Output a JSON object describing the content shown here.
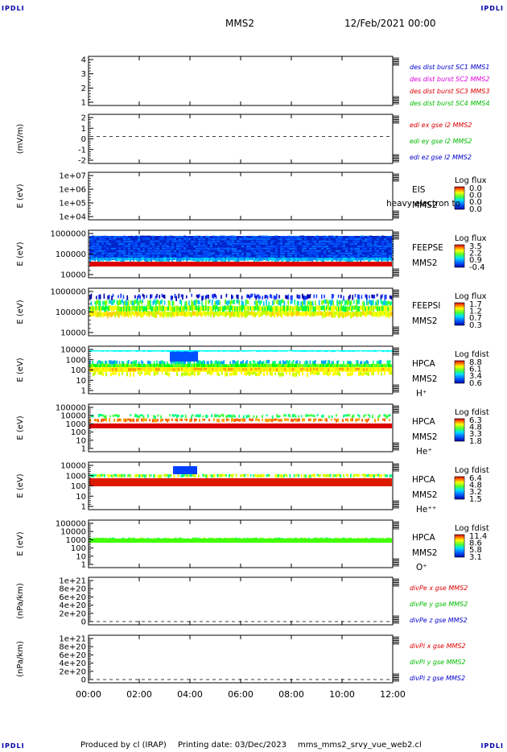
{
  "corner_label": "IPDLI",
  "header": {
    "spacecraft": "MMS2",
    "datetime": "12/Feb/2021 00:00"
  },
  "footer": {
    "produced_by": "Produced by cl (IRAP)",
    "printing_date": "Printing date: 03/Dec/2023",
    "filename": "mms_mms2_srvy_vue_web2.cl"
  },
  "time_axis": [
    "00:00",
    "02:00",
    "04:00",
    "06:00",
    "08:00",
    "10:00",
    "12:00"
  ],
  "colors": {
    "blue": "#0000cc",
    "magenta": "#dd00dd",
    "red": "#dd0000",
    "green": "#00bb00"
  },
  "panels": [
    {
      "id": "burst",
      "ylabel": "",
      "ticks": [
        "4",
        "3",
        "2",
        "1"
      ],
      "legend": [
        {
          "text": "des dist burst SC1 MMS1",
          "color": "#0000cc"
        },
        {
          "text": "des dist burst SC2 MMS2",
          "color": "#dd00dd"
        },
        {
          "text": "des dist burst SC3 MMS3",
          "color": "#dd0000"
        },
        {
          "text": "des dist burst SC4 MMS4",
          "color": "#00bb00"
        }
      ]
    },
    {
      "id": "edi",
      "ylabel": "(mV/m)",
      "ticks": [
        "2",
        "1",
        "0",
        "-1",
        "-2"
      ],
      "legend": [
        {
          "text": "edi ex gse l2 MMS2",
          "color": "#dd0000"
        },
        {
          "text": "edi ey gse l2 MMS2",
          "color": "#00bb00"
        },
        {
          "text": "edi ez gse l2 MMS2",
          "color": "#0000cc"
        }
      ]
    },
    {
      "id": "eis",
      "ylabel": "E (eV)",
      "ticks": [
        "1e+07",
        "1e+06",
        "1e+05",
        "1e+04"
      ],
      "labels": [
        "EIS",
        "MMS2"
      ],
      "overlay": "heavy electron to",
      "cb_title": "Log flux",
      "cb_ticks": [
        "0.0",
        "0.0",
        "0.0",
        "0.0"
      ]
    },
    {
      "id": "feepse",
      "ylabel": "E (eV)",
      "ticks": [
        "1000000",
        "100000",
        "10000"
      ],
      "labels": [
        "FEEPSE",
        "MMS2"
      ],
      "cb_title": "Log flux",
      "cb_ticks": [
        "3.5",
        "2.2",
        "0.9",
        "-0.4"
      ]
    },
    {
      "id": "feepsi",
      "ylabel": "E (eV)",
      "ticks": [
        "1000000",
        "100000",
        "10000"
      ],
      "labels": [
        "FEEPSI",
        "MMS2"
      ],
      "cb_title": "Log flux",
      "cb_ticks": [
        "1.7",
        "1.2",
        "0.7",
        "0.3"
      ]
    },
    {
      "id": "hpca_h",
      "ylabel": "E (eV)",
      "ticks": [
        "10000",
        "1000",
        "100",
        "10",
        "1"
      ],
      "labels": [
        "HPCA",
        "MMS2",
        "H⁺"
      ],
      "cb_title": "Log fdist",
      "cb_ticks": [
        "8.8",
        "6.1",
        "3.4",
        "0.6"
      ]
    },
    {
      "id": "hpca_he",
      "ylabel": "E (eV)",
      "ticks": [
        "100000",
        "10000",
        "1000",
        "100",
        "10",
        "1"
      ],
      "labels": [
        "HPCA",
        "MMS2",
        "He⁺"
      ],
      "cb_title": "Log fdist",
      "cb_ticks": [
        "6.3",
        "4.8",
        "3.3",
        "1.8"
      ]
    },
    {
      "id": "hpca_hepp",
      "ylabel": "E (eV)",
      "ticks": [
        "10000",
        "1000",
        "100",
        "10",
        "1"
      ],
      "labels": [
        "HPCA",
        "MMS2",
        "He⁺⁺"
      ],
      "cb_title": "Log fdist",
      "cb_ticks": [
        "6.4",
        "4.8",
        "3.2",
        "1.5"
      ]
    },
    {
      "id": "hpca_o",
      "ylabel": "E (eV)",
      "ticks": [
        "100000",
        "10000",
        "1000",
        "100",
        "10",
        "1"
      ],
      "labels": [
        "HPCA",
        "MMS2",
        "O⁺"
      ],
      "cb_title": "Log fdist",
      "cb_ticks": [
        "11.4",
        "8.6",
        "5.8",
        "3.1"
      ]
    },
    {
      "id": "divpe",
      "ylabel": "(nPa/km)",
      "ticks": [
        "1e+21",
        "8e+20",
        "6e+20",
        "4e+20",
        "2e+20",
        "0"
      ],
      "legend": [
        {
          "text": "divPe x gse MMS2",
          "color": "#dd0000"
        },
        {
          "text": "divPe y gse MMS2",
          "color": "#00bb00"
        },
        {
          "text": "divPe z gse MMS2",
          "color": "#0000cc"
        }
      ]
    },
    {
      "id": "divpi",
      "ylabel": "(nPa/km)",
      "ticks": [
        "1e+21",
        "8e+20",
        "6e+20",
        "4e+20",
        "2e+20",
        "0"
      ],
      "legend": [
        {
          "text": "divPi x gse MMS2",
          "color": "#dd0000"
        },
        {
          "text": "divPi y gse MMS2",
          "color": "#00bb00"
        },
        {
          "text": "divPi z gse MMS2",
          "color": "#0000cc"
        }
      ]
    }
  ],
  "chart_data": [
    {
      "type": "line",
      "title": "",
      "ylabel": "",
      "series": [],
      "ylim": [
        0.5,
        4.5
      ]
    },
    {
      "type": "line",
      "ylabel": "(mV/m)",
      "ylim": [
        -2.2,
        2.2
      ],
      "series": []
    },
    {
      "type": "heatmap",
      "ylabel": "E (eV)",
      "yscale": "log",
      "ylim": [
        10000,
        10000000
      ],
      "colorbar": [
        0.0,
        0.0
      ],
      "colorbar_label": "Log flux"
    },
    {
      "type": "heatmap",
      "ylabel": "E (eV)",
      "yscale": "log",
      "ylim": [
        10000,
        1000000
      ],
      "colorbar": [
        -0.4,
        3.5
      ],
      "colorbar_label": "Log flux"
    },
    {
      "type": "heatmap",
      "ylabel": "E (eV)",
      "yscale": "log",
      "ylim": [
        10000,
        1000000
      ],
      "colorbar": [
        0.3,
        1.7
      ],
      "colorbar_label": "Log flux"
    },
    {
      "type": "heatmap",
      "ylabel": "E (eV)",
      "yscale": "log",
      "ylim": [
        1,
        10000
      ],
      "colorbar": [
        0.6,
        8.8
      ],
      "colorbar_label": "Log fdist"
    },
    {
      "type": "heatmap",
      "ylabel": "E (eV)",
      "yscale": "log",
      "ylim": [
        1,
        100000
      ],
      "colorbar": [
        1.8,
        6.3
      ],
      "colorbar_label": "Log fdist"
    },
    {
      "type": "heatmap",
      "ylabel": "E (eV)",
      "yscale": "log",
      "ylim": [
        1,
        10000
      ],
      "colorbar": [
        1.5,
        6.4
      ],
      "colorbar_label": "Log fdist"
    },
    {
      "type": "heatmap",
      "ylabel": "E (eV)",
      "yscale": "log",
      "ylim": [
        1,
        100000
      ],
      "colorbar": [
        3.1,
        11.4
      ],
      "colorbar_label": "Log fdist"
    },
    {
      "type": "line",
      "ylabel": "(nPa/km)",
      "ylim": [
        0,
        1e+21
      ],
      "series": []
    },
    {
      "type": "line",
      "ylabel": "(nPa/km)",
      "ylim": [
        0,
        1e+21
      ],
      "series": []
    }
  ]
}
